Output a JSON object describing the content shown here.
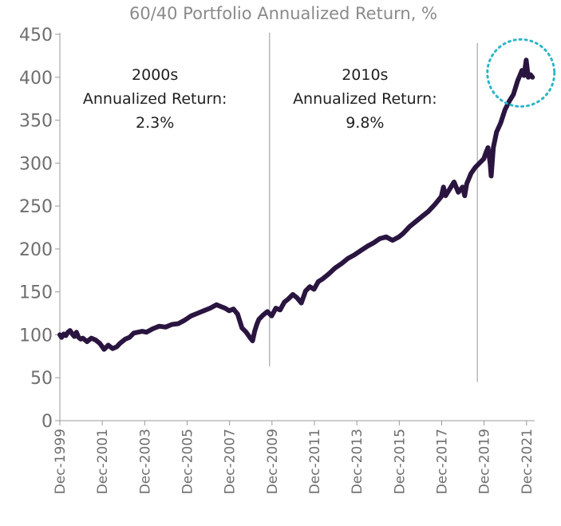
{
  "chart_data": {
    "type": "line",
    "title": "60/40 Portfolio Annualized Return, %",
    "xlabel": "",
    "ylabel": "",
    "ylim": [
      0,
      450
    ],
    "yticks": [
      0,
      50,
      100,
      150,
      200,
      250,
      300,
      350,
      400,
      450
    ],
    "xlim": [
      1999.917,
      2022.3
    ],
    "xtick_labels": [
      "Dec-1999",
      "Dec-2001",
      "Dec-2003",
      "Dec-2005",
      "Dec-2007",
      "Dec-2009",
      "Dec-2011",
      "Dec-2013",
      "Dec-2015",
      "Dec-2017",
      "Dec-2019",
      "Dec-2021"
    ],
    "xtick_years": [
      1999.917,
      2001.917,
      2003.917,
      2005.917,
      2007.917,
      2009.917,
      2011.917,
      2013.917,
      2015.917,
      2017.917,
      2019.917,
      2021.917
    ],
    "grid": false,
    "legend": "none",
    "line_color": "#2a1540",
    "annotations": [
      {
        "lines": [
          "2000s",
          "Annualized Return:",
          "2.3%"
        ],
        "x": 2004.4,
        "y": 397
      },
      {
        "lines": [
          "2010s",
          "Annualized Return:",
          "9.8%"
        ],
        "x": 2014.3,
        "y": 397
      }
    ],
    "vlines": [
      {
        "x": 2009.8,
        "y0": 63,
        "y1": 452
      },
      {
        "x": 2019.6,
        "y0": 45,
        "y1": 440
      }
    ],
    "highlight": {
      "x": 2021.65,
      "y": 405,
      "color": "#2bb6c7"
    },
    "series": [
      {
        "x": [
          1999.917,
          2000.0,
          2000.1,
          2000.2,
          2000.3,
          2000.4,
          2000.5,
          2000.6,
          2000.7,
          2000.8,
          2000.9,
          2001.0,
          2001.2,
          2001.4,
          2001.6,
          2001.8,
          2001.917,
          2002.0,
          2002.2,
          2002.4,
          2002.6,
          2002.75,
          2002.9,
          2003.0,
          2003.2,
          2003.4,
          2003.6,
          2003.8,
          2004.0,
          2004.3,
          2004.6,
          2004.9,
          2005.2,
          2005.5,
          2005.8,
          2006.1,
          2006.4,
          2006.7,
          2007.0,
          2007.3,
          2007.5,
          2007.7,
          2007.9,
          2008.1,
          2008.3,
          2008.5,
          2008.7,
          2008.9,
          2009.0,
          2009.1,
          2009.2,
          2009.3,
          2009.5,
          2009.7,
          2009.9,
          2010.1,
          2010.3,
          2010.5,
          2010.7,
          2010.9,
          2011.1,
          2011.3,
          2011.5,
          2011.7,
          2011.9,
          2012.1,
          2012.3,
          2012.6,
          2012.9,
          2013.2,
          2013.5,
          2013.8,
          2014.1,
          2014.4,
          2014.7,
          2015.0,
          2015.3,
          2015.6,
          2015.9,
          2016.1,
          2016.4,
          2016.7,
          2017.0,
          2017.3,
          2017.6,
          2017.9,
          2018.0,
          2018.1,
          2018.3,
          2018.5,
          2018.7,
          2018.9,
          2019.0,
          2019.1,
          2019.3,
          2019.5,
          2019.7,
          2019.9,
          2020.0,
          2020.1,
          2020.2,
          2020.25,
          2020.35,
          2020.5,
          2020.7,
          2020.9,
          2021.1,
          2021.3,
          2021.5,
          2021.7,
          2021.8,
          2021.9,
          2022.0,
          2022.1,
          2022.2
        ],
        "values": [
          100,
          97,
          101,
          99,
          103,
          105,
          101,
          98,
          103,
          97,
          95,
          96,
          92,
          96,
          94,
          90,
          86,
          83,
          88,
          84,
          86,
          90,
          93,
          95,
          97,
          102,
          103,
          104,
          103,
          107,
          110,
          109,
          112,
          113,
          117,
          122,
          125,
          128,
          131,
          135,
          133,
          131,
          128,
          130,
          124,
          108,
          103,
          96,
          93,
          104,
          112,
          118,
          123,
          127,
          122,
          131,
          129,
          138,
          142,
          147,
          143,
          137,
          151,
          156,
          153,
          162,
          165,
          171,
          178,
          183,
          189,
          193,
          198,
          203,
          207,
          212,
          214,
          210,
          214,
          218,
          226,
          232,
          238,
          244,
          252,
          261,
          272,
          262,
          270,
          278,
          266,
          272,
          262,
          276,
          288,
          295,
          300,
          305,
          312,
          318,
          300,
          285,
          318,
          336,
          347,
          362,
          372,
          380,
          396,
          408,
          402,
          420,
          400,
          403,
          400
        ]
      }
    ]
  }
}
